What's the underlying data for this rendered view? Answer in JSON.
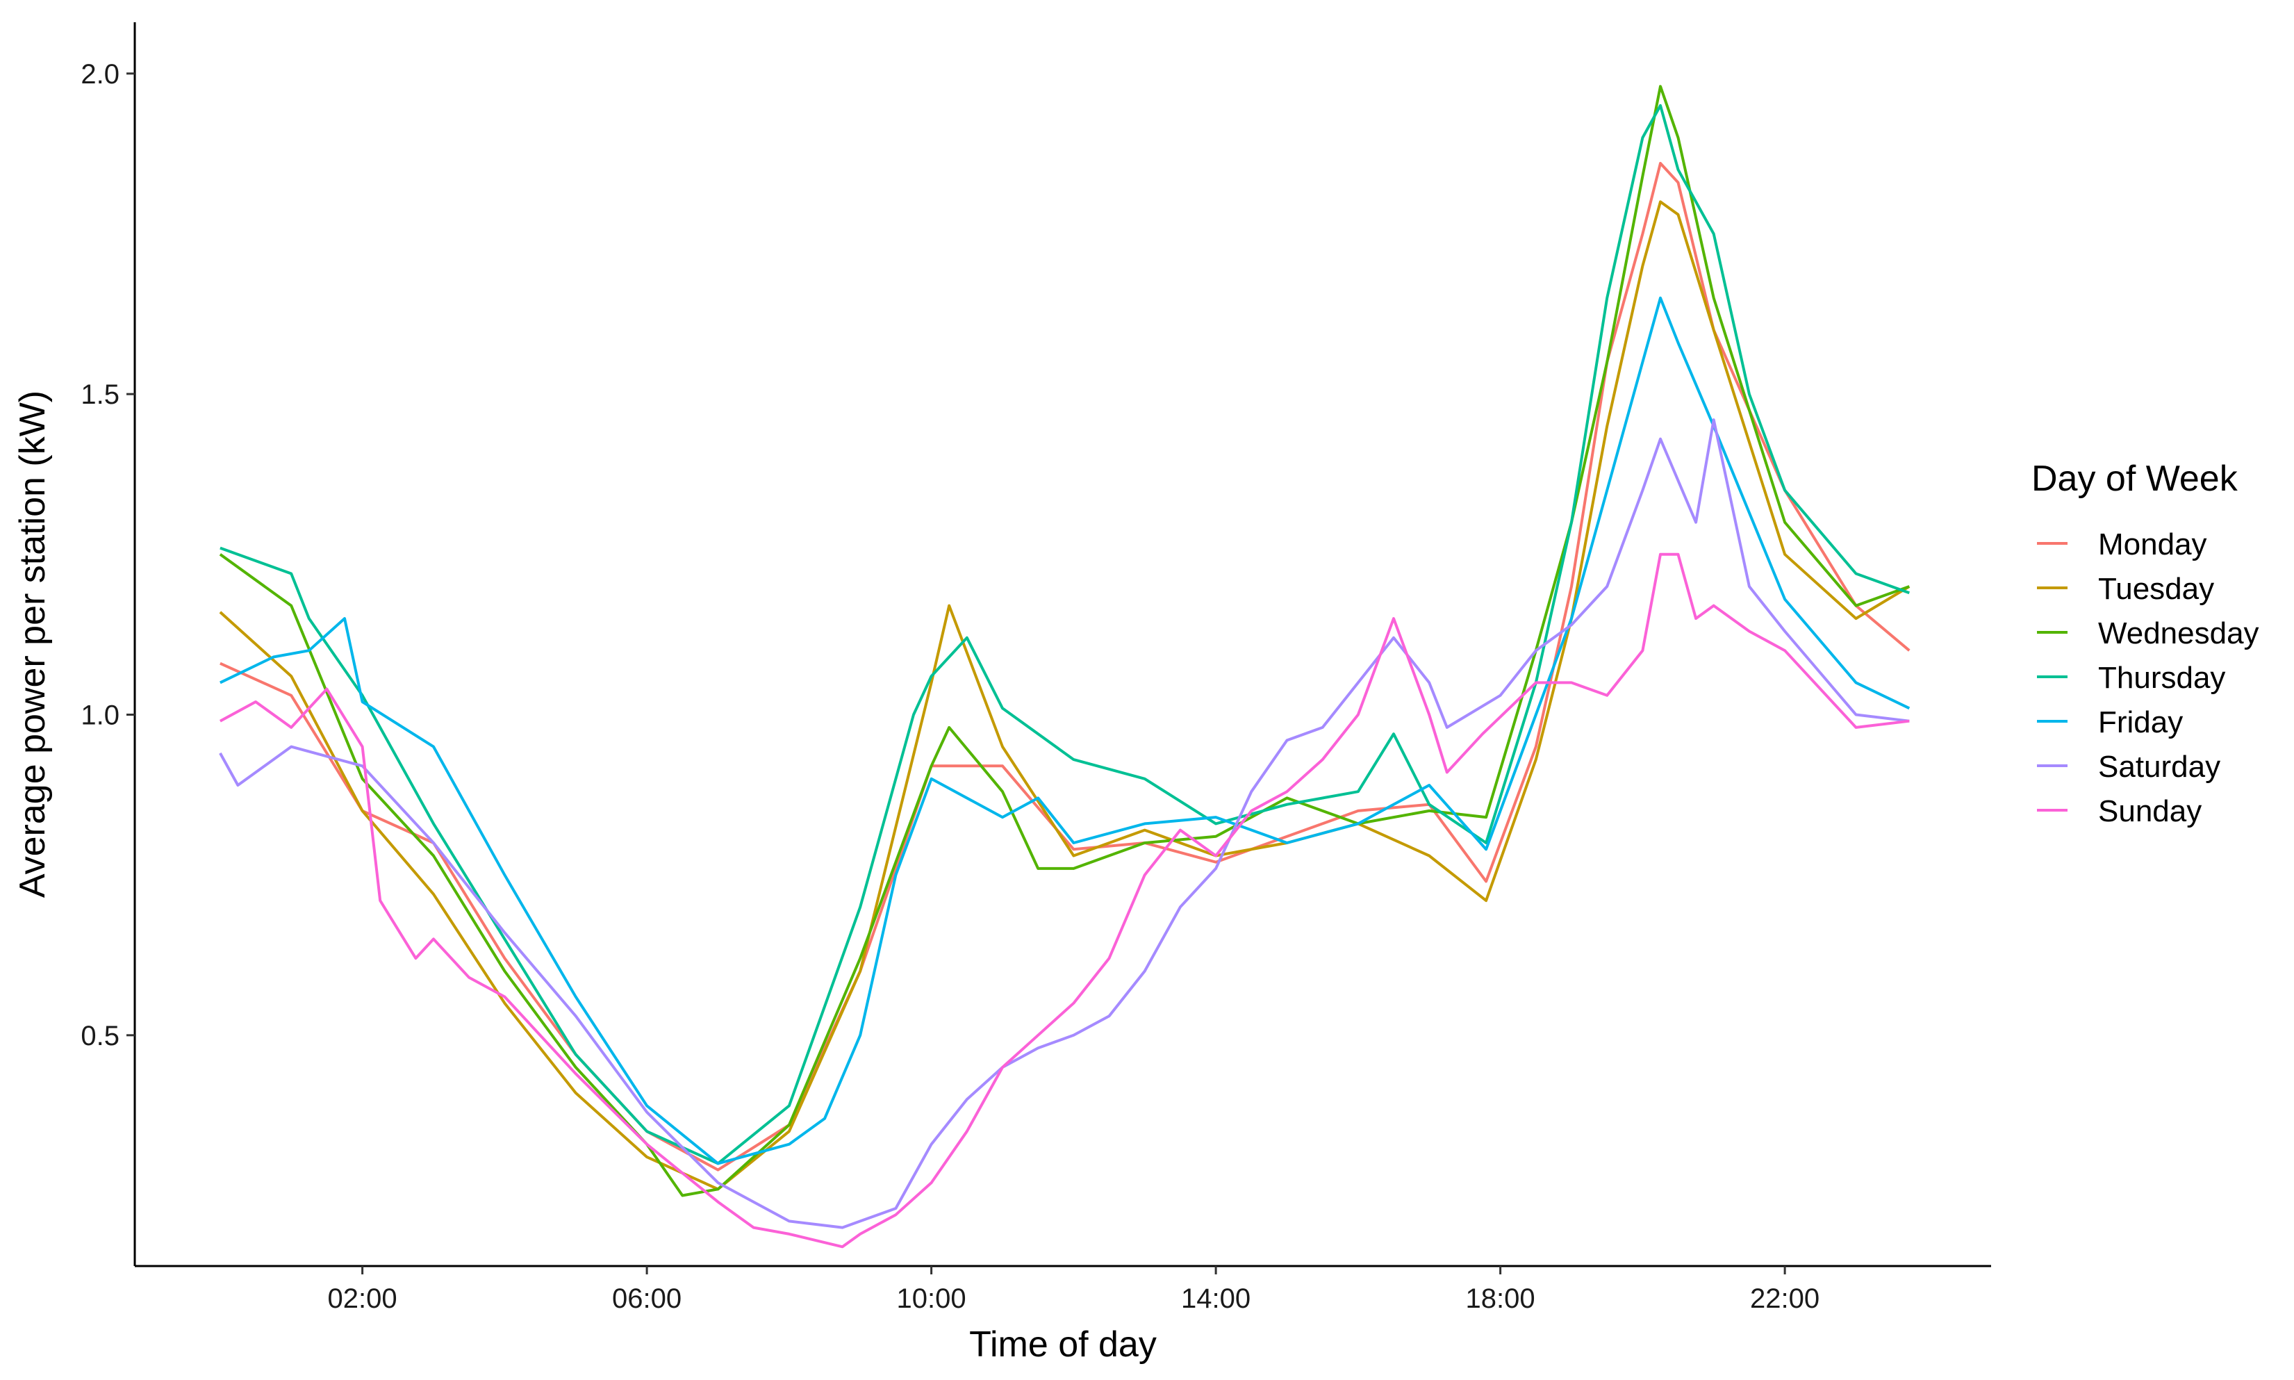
{
  "chart_data": {
    "type": "line",
    "xlabel": "Time of day",
    "ylabel": "Average power per station (kW)",
    "x_unit": "hours",
    "x_ticks": [
      {
        "value": 2,
        "label": "02:00"
      },
      {
        "value": 6,
        "label": "06:00"
      },
      {
        "value": 10,
        "label": "10:00"
      },
      {
        "value": 14,
        "label": "14:00"
      },
      {
        "value": 18,
        "label": "18:00"
      },
      {
        "value": 22,
        "label": "22:00"
      }
    ],
    "y_ticks": [
      {
        "value": 0.5,
        "label": "0.5"
      },
      {
        "value": 1.0,
        "label": "1.0"
      },
      {
        "value": 1.5,
        "label": "1.5"
      },
      {
        "value": 2.0,
        "label": "2.0"
      }
    ],
    "xlim": [
      -1.2,
      24.9
    ],
    "ylim": [
      0.14,
      2.08
    ],
    "grid": false,
    "legend": {
      "title": "Day of Week",
      "position": "right"
    },
    "series": [
      {
        "name": "Monday",
        "color": "#F8766D",
        "x": [
          0,
          1,
          2,
          3,
          4,
          5,
          6,
          7,
          8,
          9,
          10,
          11,
          12,
          13,
          14,
          15,
          16,
          17,
          17.8,
          18.5,
          19,
          19.5,
          20,
          20.25,
          20.5,
          21,
          22,
          23,
          23.75
        ],
        "y": [
          1.08,
          1.03,
          0.85,
          0.8,
          0.62,
          0.47,
          0.35,
          0.29,
          0.36,
          0.6,
          0.92,
          0.92,
          0.79,
          0.8,
          0.77,
          0.81,
          0.85,
          0.86,
          0.74,
          0.95,
          1.2,
          1.55,
          1.75,
          1.86,
          1.83,
          1.6,
          1.35,
          1.17,
          1.1
        ]
      },
      {
        "name": "Tuesday",
        "color": "#C49A00",
        "x": [
          0,
          1,
          2,
          3,
          4,
          5,
          6,
          7,
          8,
          9,
          10,
          10.25,
          11,
          12,
          13,
          14,
          15,
          16,
          17,
          17.8,
          18.5,
          19,
          19.5,
          20,
          20.25,
          20.5,
          21,
          22,
          23,
          23.75
        ],
        "y": [
          1.16,
          1.06,
          0.85,
          0.72,
          0.55,
          0.41,
          0.31,
          0.26,
          0.35,
          0.6,
          1.05,
          1.17,
          0.95,
          0.78,
          0.82,
          0.78,
          0.8,
          0.83,
          0.78,
          0.71,
          0.93,
          1.15,
          1.45,
          1.7,
          1.8,
          1.78,
          1.6,
          1.25,
          1.15,
          1.2
        ]
      },
      {
        "name": "Wednesday",
        "color": "#53B400",
        "x": [
          0,
          1,
          2,
          3,
          4,
          5,
          6,
          6.5,
          7,
          8,
          9,
          10,
          10.25,
          11,
          11.5,
          12,
          13,
          14,
          15,
          16,
          17,
          17.8,
          18.5,
          19,
          19.5,
          20,
          20.25,
          20.5,
          21,
          22,
          23,
          23.75
        ],
        "y": [
          1.25,
          1.17,
          0.9,
          0.78,
          0.6,
          0.45,
          0.33,
          0.25,
          0.26,
          0.36,
          0.62,
          0.92,
          0.98,
          0.88,
          0.76,
          0.76,
          0.8,
          0.81,
          0.87,
          0.83,
          0.85,
          0.84,
          1.1,
          1.3,
          1.55,
          1.84,
          1.98,
          1.9,
          1.65,
          1.3,
          1.17,
          1.2
        ]
      },
      {
        "name": "Thursday",
        "color": "#00C094",
        "x": [
          0,
          1,
          1.25,
          2,
          3,
          4,
          5,
          6,
          7,
          8,
          9,
          9.75,
          10,
          10.5,
          11,
          12,
          13,
          14,
          15,
          16,
          16.5,
          17,
          17.8,
          18.5,
          19,
          19.5,
          20,
          20.25,
          20.5,
          21,
          21.5,
          22,
          23,
          23.75
        ],
        "y": [
          1.26,
          1.22,
          1.15,
          1.03,
          0.83,
          0.65,
          0.47,
          0.35,
          0.3,
          0.39,
          0.7,
          1.0,
          1.06,
          1.12,
          1.01,
          0.93,
          0.9,
          0.83,
          0.86,
          0.88,
          0.97,
          0.86,
          0.8,
          1.05,
          1.3,
          1.65,
          1.9,
          1.95,
          1.85,
          1.75,
          1.5,
          1.35,
          1.22,
          1.19
        ]
      },
      {
        "name": "Friday",
        "color": "#00B6EB",
        "x": [
          0,
          0.75,
          1.25,
          1.75,
          2,
          3,
          4,
          5,
          6,
          7,
          8,
          8.5,
          9,
          9.5,
          10,
          11,
          11.5,
          12,
          13,
          14,
          15,
          16,
          17,
          17.8,
          18.5,
          19,
          19.5,
          20,
          20.25,
          20.5,
          21,
          22,
          23,
          23.75
        ],
        "y": [
          1.05,
          1.09,
          1.1,
          1.15,
          1.02,
          0.95,
          0.75,
          0.56,
          0.39,
          0.3,
          0.33,
          0.37,
          0.5,
          0.75,
          0.9,
          0.84,
          0.87,
          0.8,
          0.83,
          0.84,
          0.8,
          0.83,
          0.89,
          0.79,
          1.0,
          1.15,
          1.35,
          1.55,
          1.65,
          1.58,
          1.45,
          1.18,
          1.05,
          1.01
        ]
      },
      {
        "name": "Saturday",
        "color": "#A58AFF",
        "x": [
          0,
          0.25,
          1,
          2,
          3,
          4,
          5,
          6,
          7,
          7.5,
          8,
          8.75,
          9,
          9.5,
          10,
          10.5,
          11,
          11.5,
          12,
          12.5,
          13,
          13.5,
          14,
          14.5,
          15,
          15.5,
          16,
          16.5,
          17,
          17.25,
          18,
          18.5,
          19,
          19.5,
          20,
          20.25,
          20.75,
          21,
          21.5,
          22,
          23,
          23.75
        ],
        "y": [
          0.94,
          0.89,
          0.95,
          0.92,
          0.8,
          0.66,
          0.53,
          0.38,
          0.27,
          0.24,
          0.21,
          0.2,
          0.21,
          0.23,
          0.33,
          0.4,
          0.45,
          0.48,
          0.5,
          0.53,
          0.6,
          0.7,
          0.76,
          0.88,
          0.96,
          0.98,
          1.05,
          1.12,
          1.05,
          0.98,
          1.03,
          1.1,
          1.14,
          1.2,
          1.35,
          1.43,
          1.3,
          1.46,
          1.2,
          1.13,
          1.0,
          0.99
        ]
      },
      {
        "name": "Sunday",
        "color": "#FB61D7",
        "x": [
          0,
          0.5,
          1,
          1.5,
          2,
          2.25,
          2.75,
          3,
          3.5,
          4,
          5,
          6,
          7,
          7.5,
          8,
          8.75,
          9,
          9.5,
          10,
          10.5,
          11,
          11.5,
          12,
          12.5,
          13,
          13.5,
          14,
          14.5,
          15,
          15.5,
          16,
          16.5,
          17,
          17.25,
          17.75,
          18.5,
          19,
          19.5,
          20,
          20.25,
          20.5,
          20.75,
          21,
          21.5,
          22,
          23,
          23.75
        ],
        "y": [
          0.99,
          1.02,
          0.98,
          1.04,
          0.95,
          0.71,
          0.62,
          0.65,
          0.59,
          0.56,
          0.44,
          0.33,
          0.24,
          0.2,
          0.19,
          0.17,
          0.19,
          0.22,
          0.27,
          0.35,
          0.45,
          0.5,
          0.55,
          0.62,
          0.75,
          0.82,
          0.78,
          0.85,
          0.88,
          0.93,
          1.0,
          1.15,
          1.0,
          0.91,
          0.97,
          1.05,
          1.05,
          1.03,
          1.1,
          1.25,
          1.25,
          1.15,
          1.17,
          1.13,
          1.1,
          0.98,
          0.99
        ]
      }
    ]
  }
}
